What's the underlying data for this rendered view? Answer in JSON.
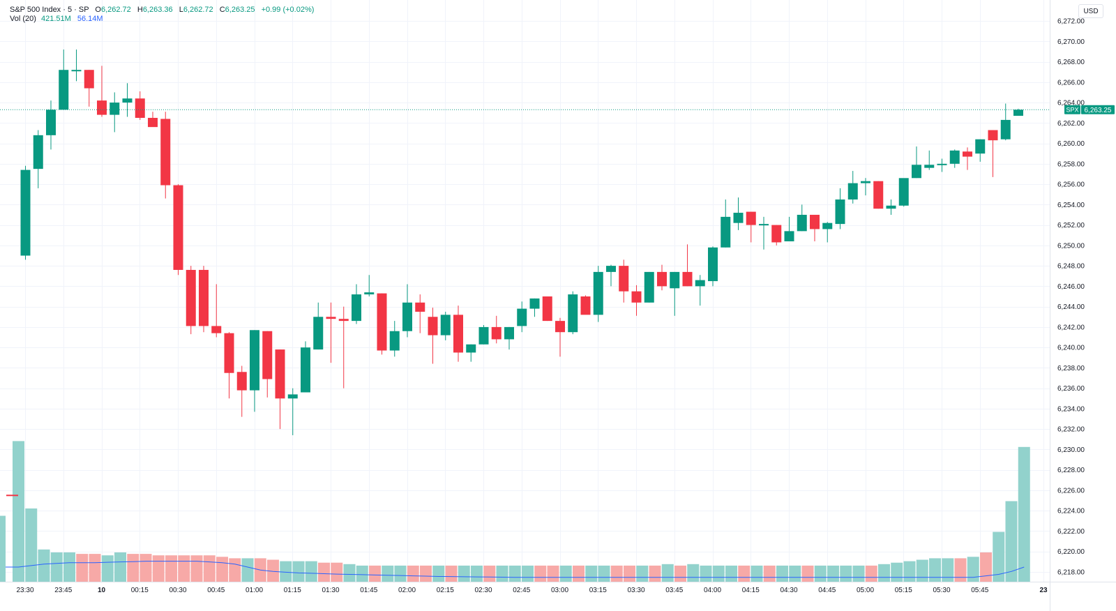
{
  "legend": {
    "symbol": "S&P 500 Index · 5 · SP",
    "o_label": "O",
    "o": "6,262.72",
    "h_label": "H",
    "h": "6,263.36",
    "l_label": "L",
    "l": "6,262.72",
    "c_label": "C",
    "c": "6,263.25",
    "change": "+0.99 (+0.02%)",
    "vol_label": "Vol (20)",
    "vol_value": "421.51M",
    "vol_ma": "56.14M"
  },
  "currency_button": "USD",
  "price_tag": {
    "symbol": "SPX",
    "value": "6,263.25"
  },
  "colors": {
    "up": "#089981",
    "down": "#f23645",
    "vol_up": "#92d2cc",
    "vol_down": "#f7a9a7",
    "vol_ma": "#2962ff"
  },
  "chart_data": {
    "type": "candlestick",
    "interval_minutes": 5,
    "y_ticks": [
      "6,218.00",
      "6,220.00",
      "6,222.00",
      "6,224.00",
      "6,226.00",
      "6,228.00",
      "6,230.00",
      "6,232.00",
      "6,234.00",
      "6,236.00",
      "6,238.00",
      "6,240.00",
      "6,242.00",
      "6,244.00",
      "6,246.00",
      "6,248.00",
      "6,250.00",
      "6,252.00",
      "6,254.00",
      "6,256.00",
      "6,258.00",
      "6,260.00",
      "6,262.00",
      "6,264.00",
      "6,266.00",
      "6,268.00",
      "6,270.00",
      "6,272.00"
    ],
    "y_tick_values": [
      6218,
      6220,
      6222,
      6224,
      6226,
      6228,
      6230,
      6232,
      6234,
      6236,
      6238,
      6240,
      6242,
      6244,
      6246,
      6248,
      6250,
      6252,
      6254,
      6256,
      6258,
      6260,
      6262,
      6264,
      6266,
      6268,
      6270,
      6272
    ],
    "x_tick_labels": [
      "23:30",
      "23:45",
      "10",
      "00:15",
      "00:30",
      "00:45",
      "01:00",
      "01:15",
      "01:30",
      "01:45",
      "02:00",
      "02:15",
      "02:30",
      "02:45",
      "03:00",
      "03:15",
      "03:30",
      "03:45",
      "04:00",
      "04:15",
      "04:30",
      "04:45",
      "05:00",
      "05:15",
      "05:30",
      "05:45",
      "23"
    ],
    "x_tick_index": [
      0,
      3,
      6,
      9,
      12,
      15,
      18,
      21,
      24,
      27,
      30,
      33,
      36,
      39,
      42,
      45,
      48,
      51,
      54,
      57,
      60,
      63,
      66,
      69,
      72,
      75,
      80
    ],
    "y_range": [
      6217.0,
      6273.5
    ],
    "first_candle_value": {
      "o": 6225.5,
      "c": 6225.5,
      "h": 6225.5,
      "l": 6225.5
    },
    "candles": [
      {
        "o": 6249.0,
        "h": 6257.8,
        "l": 6248.6,
        "c": 6257.4
      },
      {
        "o": 6257.5,
        "h": 6261.3,
        "l": 6255.6,
        "c": 6260.8
      },
      {
        "o": 6260.8,
        "h": 6264.2,
        "l": 6259.4,
        "c": 6263.3
      },
      {
        "o": 6263.3,
        "h": 6269.2,
        "l": 6263.3,
        "c": 6267.2
      },
      {
        "o": 6267.1,
        "h": 6269.2,
        "l": 6266.1,
        "c": 6267.2
      },
      {
        "o": 6267.2,
        "h": 6267.2,
        "l": 6263.6,
        "c": 6265.4
      },
      {
        "o": 6264.2,
        "h": 6267.6,
        "l": 6262.6,
        "c": 6262.8
      },
      {
        "o": 6262.8,
        "h": 6265.0,
        "l": 6261.1,
        "c": 6264.0
      },
      {
        "o": 6264.0,
        "h": 6265.9,
        "l": 6262.6,
        "c": 6264.4
      },
      {
        "o": 6264.4,
        "h": 6265.1,
        "l": 6262.3,
        "c": 6262.5
      },
      {
        "o": 6262.5,
        "h": 6263.1,
        "l": 6261.7,
        "c": 6261.6
      },
      {
        "o": 6262.4,
        "h": 6263.1,
        "l": 6254.6,
        "c": 6255.9
      },
      {
        "o": 6255.9,
        "h": 6256.0,
        "l": 6247.1,
        "c": 6247.6
      },
      {
        "o": 6247.6,
        "h": 6248.0,
        "l": 6241.3,
        "c": 6242.1
      },
      {
        "o": 6247.6,
        "h": 6248.0,
        "l": 6241.5,
        "c": 6242.1
      },
      {
        "o": 6242.1,
        "h": 6246.2,
        "l": 6241.0,
        "c": 6241.4
      },
      {
        "o": 6241.4,
        "h": 6241.5,
        "l": 6235.0,
        "c": 6237.5
      },
      {
        "o": 6237.6,
        "h": 6238.2,
        "l": 6233.2,
        "c": 6235.8
      },
      {
        "o": 6235.8,
        "h": 6241.7,
        "l": 6233.7,
        "c": 6241.7
      },
      {
        "o": 6241.6,
        "h": 6241.6,
        "l": 6235.1,
        "c": 6236.9
      },
      {
        "o": 6239.8,
        "h": 6239.8,
        "l": 6232.0,
        "c": 6235.0
      },
      {
        "o": 6235.0,
        "h": 6236.0,
        "l": 6231.4,
        "c": 6235.4
      },
      {
        "o": 6235.6,
        "h": 6240.6,
        "l": 6235.6,
        "c": 6240.0
      },
      {
        "o": 6239.8,
        "h": 6244.4,
        "l": 6239.8,
        "c": 6243.0
      },
      {
        "o": 6243.0,
        "h": 6244.4,
        "l": 6238.5,
        "c": 6242.8
      },
      {
        "o": 6242.8,
        "h": 6244.0,
        "l": 6236.0,
        "c": 6242.6
      },
      {
        "o": 6242.6,
        "h": 6246.2,
        "l": 6242.3,
        "c": 6245.2
      },
      {
        "o": 6245.2,
        "h": 6247.1,
        "l": 6245.0,
        "c": 6245.4
      },
      {
        "o": 6245.3,
        "h": 6245.3,
        "l": 6239.3,
        "c": 6239.7
      },
      {
        "o": 6239.7,
        "h": 6242.6,
        "l": 6239.1,
        "c": 6241.6
      },
      {
        "o": 6241.6,
        "h": 6246.2,
        "l": 6241.0,
        "c": 6244.4
      },
      {
        "o": 6244.4,
        "h": 6245.2,
        "l": 6241.4,
        "c": 6243.5
      },
      {
        "o": 6243.0,
        "h": 6243.9,
        "l": 6238.4,
        "c": 6241.2
      },
      {
        "o": 6241.2,
        "h": 6243.5,
        "l": 6240.7,
        "c": 6243.2
      },
      {
        "o": 6243.2,
        "h": 6244.1,
        "l": 6238.6,
        "c": 6239.5
      },
      {
        "o": 6239.5,
        "h": 6240.3,
        "l": 6238.6,
        "c": 6240.3
      },
      {
        "o": 6240.3,
        "h": 6242.2,
        "l": 6240.3,
        "c": 6242.0
      },
      {
        "o": 6242.0,
        "h": 6243.1,
        "l": 6240.4,
        "c": 6240.8
      },
      {
        "o": 6240.8,
        "h": 6242.0,
        "l": 6239.8,
        "c": 6242.0
      },
      {
        "o": 6242.1,
        "h": 6244.5,
        "l": 6241.5,
        "c": 6243.8
      },
      {
        "o": 6243.8,
        "h": 6244.8,
        "l": 6243.0,
        "c": 6244.8
      },
      {
        "o": 6245.0,
        "h": 6245.0,
        "l": 6242.6,
        "c": 6242.6
      },
      {
        "o": 6242.6,
        "h": 6242.9,
        "l": 6239.1,
        "c": 6241.5
      },
      {
        "o": 6241.5,
        "h": 6245.5,
        "l": 6241.3,
        "c": 6245.2
      },
      {
        "o": 6245.0,
        "h": 6245.1,
        "l": 6243.5,
        "c": 6243.2
      },
      {
        "o": 6243.2,
        "h": 6248.0,
        "l": 6242.5,
        "c": 6247.4
      },
      {
        "o": 6247.4,
        "h": 6248.1,
        "l": 6246.0,
        "c": 6248.0
      },
      {
        "o": 6248.0,
        "h": 6248.6,
        "l": 6244.4,
        "c": 6245.5
      },
      {
        "o": 6245.5,
        "h": 6246.1,
        "l": 6243.1,
        "c": 6244.4
      },
      {
        "o": 6244.4,
        "h": 6247.4,
        "l": 6244.4,
        "c": 6247.4
      },
      {
        "o": 6247.4,
        "h": 6248.1,
        "l": 6245.6,
        "c": 6246.0
      },
      {
        "o": 6245.8,
        "h": 6247.4,
        "l": 6243.1,
        "c": 6247.4
      },
      {
        "o": 6247.4,
        "h": 6250.1,
        "l": 6246.0,
        "c": 6246.0
      },
      {
        "o": 6246.0,
        "h": 6247.1,
        "l": 6244.1,
        "c": 6246.6
      },
      {
        "o": 6246.5,
        "h": 6249.9,
        "l": 6246.0,
        "c": 6249.8
      },
      {
        "o": 6249.8,
        "h": 6254.5,
        "l": 6249.8,
        "c": 6252.8
      },
      {
        "o": 6252.2,
        "h": 6254.7,
        "l": 6251.5,
        "c": 6253.2
      },
      {
        "o": 6253.3,
        "h": 6253.3,
        "l": 6250.3,
        "c": 6252.0
      },
      {
        "o": 6252.0,
        "h": 6252.8,
        "l": 6249.6,
        "c": 6252.1
      },
      {
        "o": 6252.0,
        "h": 6252.0,
        "l": 6250.0,
        "c": 6250.3
      },
      {
        "o": 6250.4,
        "h": 6252.8,
        "l": 6250.4,
        "c": 6251.4
      },
      {
        "o": 6251.4,
        "h": 6254.0,
        "l": 6251.4,
        "c": 6253.0
      },
      {
        "o": 6253.0,
        "h": 6253.0,
        "l": 6250.4,
        "c": 6251.6
      },
      {
        "o": 6251.6,
        "h": 6252.3,
        "l": 6250.3,
        "c": 6252.2
      },
      {
        "o": 6252.1,
        "h": 6255.6,
        "l": 6251.6,
        "c": 6254.5
      },
      {
        "o": 6254.5,
        "h": 6257.3,
        "l": 6254.1,
        "c": 6256.1
      },
      {
        "o": 6256.1,
        "h": 6256.6,
        "l": 6254.9,
        "c": 6256.3
      },
      {
        "o": 6256.3,
        "h": 6256.3,
        "l": 6253.6,
        "c": 6253.6
      },
      {
        "o": 6253.6,
        "h": 6254.5,
        "l": 6253.0,
        "c": 6253.9
      },
      {
        "o": 6253.9,
        "h": 6256.3,
        "l": 6253.8,
        "c": 6256.6
      },
      {
        "o": 6256.6,
        "h": 6259.7,
        "l": 6256.6,
        "c": 6257.9
      },
      {
        "o": 6257.6,
        "h": 6259.3,
        "l": 6257.4,
        "c": 6257.9
      },
      {
        "o": 6257.9,
        "h": 6258.5,
        "l": 6257.2,
        "c": 6258.0
      },
      {
        "o": 6258.0,
        "h": 6259.4,
        "l": 6257.6,
        "c": 6259.3
      },
      {
        "o": 6259.2,
        "h": 6259.6,
        "l": 6257.4,
        "c": 6258.7
      },
      {
        "o": 6259.0,
        "h": 6260.4,
        "l": 6258.2,
        "c": 6260.4
      },
      {
        "o": 6261.3,
        "h": 6261.3,
        "l": 6256.7,
        "c": 6260.3
      },
      {
        "o": 6260.4,
        "h": 6263.9,
        "l": 6260.3,
        "c": 6262.3
      },
      {
        "o": 6262.7,
        "h": 6263.4,
        "l": 6262.7,
        "c": 6263.3
      }
    ],
    "volume_levels": [
      0.96,
      0.5,
      0.22,
      0.2,
      0.2,
      0.19,
      0.19,
      0.18,
      0.2,
      0.19,
      0.19,
      0.18,
      0.18,
      0.18,
      0.18,
      0.18,
      0.17,
      0.16,
      0.16,
      0.16,
      0.15,
      0.14,
      0.14,
      0.14,
      0.13,
      0.13,
      0.12,
      0.11,
      0.11,
      0.11,
      0.11,
      0.11,
      0.11,
      0.11,
      0.11,
      0.11,
      0.11,
      0.11,
      0.11,
      0.11,
      0.11,
      0.11,
      0.11,
      0.11,
      0.11,
      0.11,
      0.11,
      0.11,
      0.11,
      0.11,
      0.11,
      0.12,
      0.11,
      0.12,
      0.11,
      0.11,
      0.11,
      0.11,
      0.11,
      0.11,
      0.11,
      0.11,
      0.11,
      0.11,
      0.11,
      0.11,
      0.11,
      0.11,
      0.12,
      0.13,
      0.14,
      0.15,
      0.16,
      0.16,
      0.16,
      0.17,
      0.2,
      0.34,
      0.55,
      0.92
    ],
    "volume_ma_levels": [
      0.1,
      0.11,
      0.12,
      0.125,
      0.13,
      0.13,
      0.13,
      0.133,
      0.135,
      0.137,
      0.14,
      0.14,
      0.14,
      0.14,
      0.14,
      0.135,
      0.13,
      0.12,
      0.1,
      0.08,
      0.07,
      0.065,
      0.06,
      0.058,
      0.055,
      0.052,
      0.05,
      0.048,
      0.046,
      0.044,
      0.042,
      0.04,
      0.038,
      0.036,
      0.035,
      0.034,
      0.033,
      0.032,
      0.031,
      0.03,
      0.03,
      0.03,
      0.03,
      0.03,
      0.03,
      0.03,
      0.03,
      0.03,
      0.03,
      0.03,
      0.03,
      0.03,
      0.03,
      0.03,
      0.03,
      0.03,
      0.03,
      0.03,
      0.03,
      0.03,
      0.03,
      0.03,
      0.03,
      0.03,
      0.03,
      0.03,
      0.03,
      0.03,
      0.03,
      0.03,
      0.03,
      0.03,
      0.03,
      0.03,
      0.03,
      0.03,
      0.04,
      0.05,
      0.07,
      0.1
    ]
  }
}
